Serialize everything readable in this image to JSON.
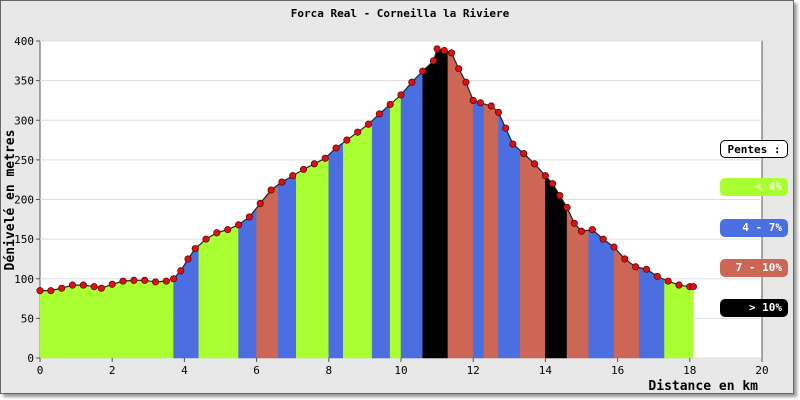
{
  "chart_data": {
    "type": "area",
    "title": "Forca Real - Corneilla la Riviere",
    "xlabel": "Distance en km",
    "ylabel": "Dénivelé en metres",
    "xlim": [
      0,
      20
    ],
    "ylim": [
      0,
      400
    ],
    "x_ticks": [
      "0",
      "2",
      "4",
      "6",
      "8",
      "10",
      "12",
      "14",
      "16",
      "18",
      "20"
    ],
    "y_ticks": [
      "0",
      "50",
      "100",
      "150",
      "200",
      "250",
      "300",
      "350",
      "400"
    ],
    "grid": true,
    "legend_title": "Pentes :",
    "legend": [
      {
        "label": "< 4%",
        "color": "#aaff33"
      },
      {
        "label": "4 - 7%",
        "color": "#4b6fe0"
      },
      {
        "label": "7 - 10%",
        "color": "#cc6655"
      },
      {
        "label": "> 10%",
        "color": "#000000"
      }
    ],
    "profile": {
      "x": [
        0,
        0.3,
        0.6,
        0.9,
        1.2,
        1.5,
        1.7,
        2.0,
        2.3,
        2.6,
        2.9,
        3.2,
        3.5,
        3.7,
        3.9,
        4.1,
        4.3,
        4.6,
        4.9,
        5.2,
        5.5,
        5.8,
        6.1,
        6.4,
        6.7,
        7.0,
        7.3,
        7.6,
        7.9,
        8.2,
        8.5,
        8.8,
        9.1,
        9.4,
        9.7,
        10.0,
        10.3,
        10.6,
        10.9,
        11.0,
        11.2,
        11.4,
        11.6,
        11.8,
        12.0,
        12.2,
        12.5,
        12.7,
        12.9,
        13.1,
        13.4,
        13.7,
        14.0,
        14.2,
        14.4,
        14.6,
        14.8,
        15.0,
        15.3,
        15.6,
        15.9,
        16.2,
        16.5,
        16.8,
        17.1,
        17.4,
        17.7,
        18.0,
        18.1
      ],
      "y": [
        85,
        85,
        88,
        92,
        92,
        90,
        88,
        93,
        97,
        98,
        98,
        96,
        97,
        100,
        110,
        125,
        138,
        150,
        158,
        162,
        168,
        178,
        195,
        212,
        222,
        230,
        238,
        245,
        252,
        265,
        275,
        285,
        295,
        308,
        320,
        332,
        348,
        362,
        375,
        390,
        388,
        385,
        365,
        348,
        325,
        322,
        318,
        310,
        290,
        270,
        258,
        245,
        230,
        220,
        205,
        190,
        170,
        160,
        162,
        150,
        140,
        125,
        115,
        112,
        103,
        97,
        92,
        90,
        90
      ]
    },
    "slope_segments": [
      {
        "x0": 0,
        "x1": 3.7,
        "class": 0
      },
      {
        "x0": 3.7,
        "x1": 4.4,
        "class": 1
      },
      {
        "x0": 4.4,
        "x1": 5.5,
        "class": 0
      },
      {
        "x0": 5.5,
        "x1": 6.0,
        "class": 1
      },
      {
        "x0": 6.0,
        "x1": 6.6,
        "class": 2
      },
      {
        "x0": 6.6,
        "x1": 7.1,
        "class": 1
      },
      {
        "x0": 7.1,
        "x1": 8.0,
        "class": 0
      },
      {
        "x0": 8.0,
        "x1": 8.4,
        "class": 1
      },
      {
        "x0": 8.4,
        "x1": 9.2,
        "class": 0
      },
      {
        "x0": 9.2,
        "x1": 9.7,
        "class": 1
      },
      {
        "x0": 9.7,
        "x1": 10.0,
        "class": 0
      },
      {
        "x0": 10.0,
        "x1": 10.6,
        "class": 1
      },
      {
        "x0": 10.6,
        "x1": 11.3,
        "class": 3
      },
      {
        "x0": 11.3,
        "x1": 12.0,
        "class": 2
      },
      {
        "x0": 12.0,
        "x1": 12.3,
        "class": 1
      },
      {
        "x0": 12.3,
        "x1": 12.7,
        "class": 2
      },
      {
        "x0": 12.7,
        "x1": 13.3,
        "class": 1
      },
      {
        "x0": 13.3,
        "x1": 14.0,
        "class": 2
      },
      {
        "x0": 14.0,
        "x1": 14.6,
        "class": 3
      },
      {
        "x0": 14.6,
        "x1": 15.2,
        "class": 2
      },
      {
        "x0": 15.2,
        "x1": 15.9,
        "class": 1
      },
      {
        "x0": 15.9,
        "x1": 16.6,
        "class": 2
      },
      {
        "x0": 16.6,
        "x1": 17.3,
        "class": 1
      },
      {
        "x0": 17.3,
        "x1": 18.1,
        "class": 0
      }
    ]
  }
}
